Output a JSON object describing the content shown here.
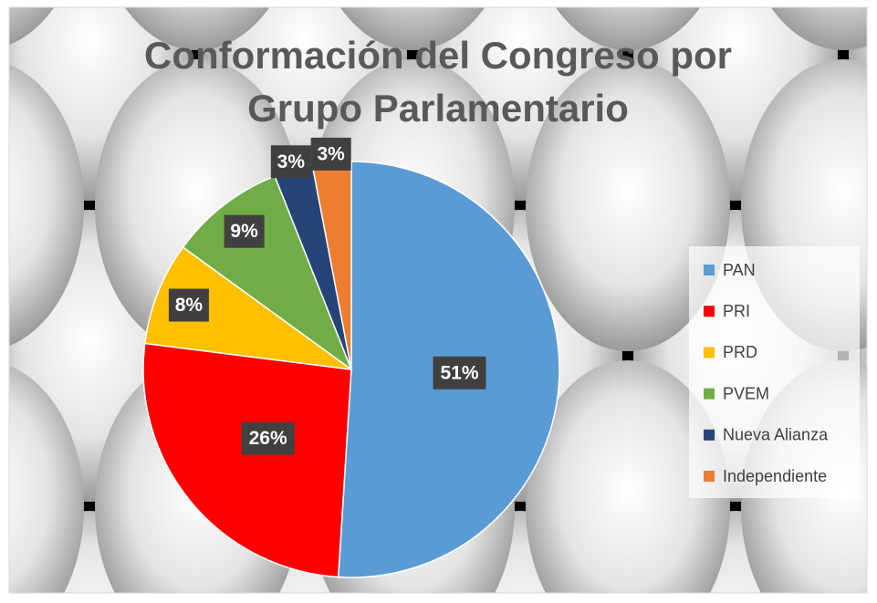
{
  "chart_data": {
    "type": "pie",
    "title": "Conformación del Congreso por Grupo Parlamentario",
    "categories": [
      "PAN",
      "PRI",
      "PRD",
      "PVEM",
      "Nueva Alianza",
      "Independiente"
    ],
    "values": [
      51,
      26,
      8,
      9,
      3,
      3
    ],
    "value_labels": [
      "51%",
      "26%",
      "8%",
      "9%",
      "3%",
      "3%"
    ],
    "colors": [
      "#5b9bd5",
      "#ff0000",
      "#ffc000",
      "#70ad47",
      "#264478",
      "#ed7d31"
    ],
    "legend": "right"
  }
}
